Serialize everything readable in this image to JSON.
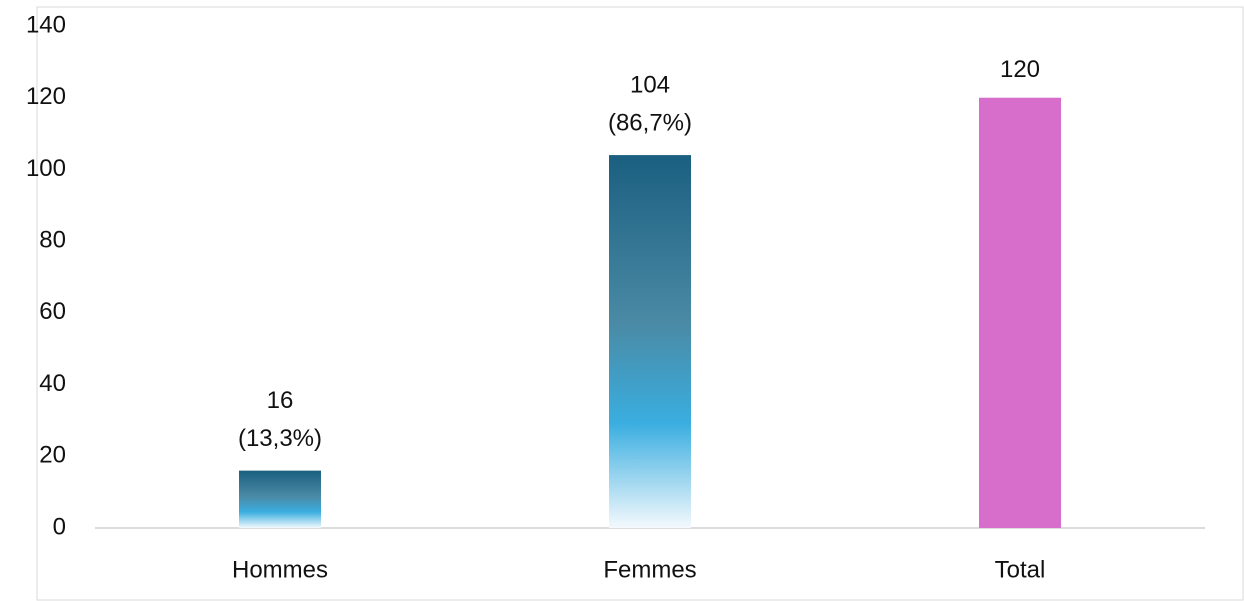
{
  "chart_data": {
    "type": "bar",
    "categories": [
      "Hommes",
      "Femmes",
      "Total"
    ],
    "values": [
      16,
      104,
      120
    ],
    "share_labels": [
      "(13,3%)",
      "(86,7%)",
      null
    ],
    "colors": [
      "#1b5f80",
      "#1b5f80",
      "#d86ecc"
    ],
    "gradient": [
      true,
      true,
      false
    ],
    "ylim": [
      0,
      140
    ],
    "yticks": [
      0,
      20,
      40,
      60,
      80,
      100,
      120,
      140
    ],
    "grid": false
  }
}
